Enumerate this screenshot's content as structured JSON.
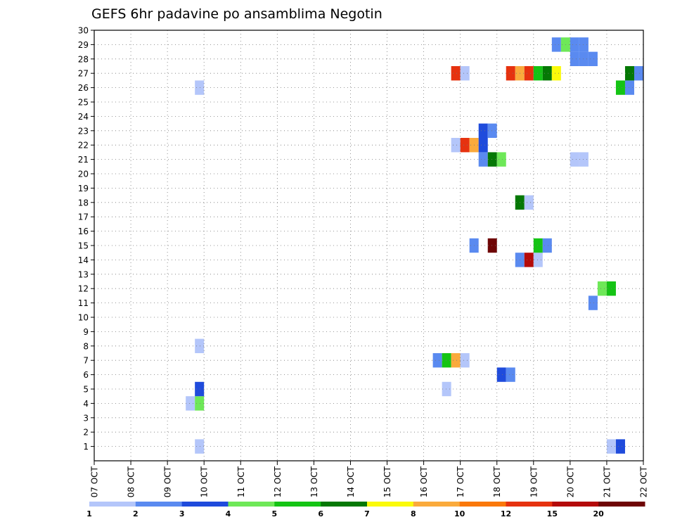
{
  "chart_data": {
    "type": "heatmap",
    "title": "GEFS 6hr padavine po ansamblima Negotin",
    "xlabel": "",
    "ylabel": "",
    "x_tick_labels": [
      "07 OCT",
      "08 OCT",
      "09 OCT",
      "10 OCT",
      "11 OCT",
      "12 OCT",
      "13 OCT",
      "14 OCT",
      "15 OCT",
      "16 OCT",
      "17 OCT",
      "18 OCT",
      "19 OCT",
      "20 OCT",
      "21 OCT",
      "22 OCT"
    ],
    "y_tick_labels": [
      "1",
      "2",
      "3",
      "4",
      "5",
      "6",
      "7",
      "8",
      "9",
      "10",
      "11",
      "12",
      "13",
      "14",
      "15",
      "16",
      "17",
      "18",
      "19",
      "20",
      "21",
      "22",
      "23",
      "24",
      "25",
      "26",
      "27",
      "28",
      "29",
      "30"
    ],
    "x_range_days": [
      0,
      15
    ],
    "y_range": [
      0,
      30
    ],
    "grid": true,
    "colors": [
      "#b4c6fa",
      "#5a8af0",
      "#1f4bdc",
      "#6ee858",
      "#14c414",
      "#057805",
      "#fafa0a",
      "#faaa3c",
      "#fa780a",
      "#e6320f",
      "#b40a0a",
      "#6e0505"
    ],
    "color_scale_labels": [
      "1",
      "2",
      "3",
      "4",
      "5",
      "6",
      "7",
      "8",
      "10",
      "12",
      "15",
      "20"
    ],
    "cells": [
      {
        "member": 1,
        "day": 2.875,
        "color": 0
      },
      {
        "member": 1,
        "day": 14.125,
        "color": 0
      },
      {
        "member": 1,
        "day": 14.375,
        "color": 2
      },
      {
        "member": 4,
        "day": 2.625,
        "color": 0
      },
      {
        "member": 4,
        "day": 2.875,
        "color": 3
      },
      {
        "member": 5,
        "day": 2.875,
        "color": 2
      },
      {
        "member": 5,
        "day": 9.625,
        "color": 0
      },
      {
        "member": 6,
        "day": 11.125,
        "color": 2
      },
      {
        "member": 6,
        "day": 11.375,
        "color": 1
      },
      {
        "member": 7,
        "day": 9.375,
        "color": 1
      },
      {
        "member": 7,
        "day": 9.625,
        "color": 4
      },
      {
        "member": 7,
        "day": 9.875,
        "color": 7
      },
      {
        "member": 7,
        "day": 10.125,
        "color": 0
      },
      {
        "member": 8,
        "day": 2.875,
        "color": 0
      },
      {
        "member": 11,
        "day": 13.625,
        "color": 1
      },
      {
        "member": 12,
        "day": 13.875,
        "color": 3
      },
      {
        "member": 12,
        "day": 14.125,
        "color": 4
      },
      {
        "member": 14,
        "day": 11.625,
        "color": 1
      },
      {
        "member": 14,
        "day": 11.875,
        "color": 10
      },
      {
        "member": 14,
        "day": 12.125,
        "color": 0
      },
      {
        "member": 15,
        "day": 10.375,
        "color": 1
      },
      {
        "member": 15,
        "day": 10.875,
        "color": 11
      },
      {
        "member": 15,
        "day": 12.125,
        "color": 4
      },
      {
        "member": 15,
        "day": 12.375,
        "color": 1
      },
      {
        "member": 18,
        "day": 11.625,
        "color": 5
      },
      {
        "member": 18,
        "day": 11.875,
        "color": 0
      },
      {
        "member": 21,
        "day": 10.625,
        "color": 1
      },
      {
        "member": 21,
        "day": 10.875,
        "color": 5
      },
      {
        "member": 21,
        "day": 11.125,
        "color": 3
      },
      {
        "member": 21,
        "day": 13.125,
        "color": 0
      },
      {
        "member": 21,
        "day": 13.375,
        "color": 0
      },
      {
        "member": 22,
        "day": 9.875,
        "color": 0
      },
      {
        "member": 22,
        "day": 10.125,
        "color": 9
      },
      {
        "member": 22,
        "day": 10.375,
        "color": 7
      },
      {
        "member": 22,
        "day": 10.625,
        "color": 2
      },
      {
        "member": 23,
        "day": 10.625,
        "color": 2
      },
      {
        "member": 23,
        "day": 10.875,
        "color": 1
      },
      {
        "member": 26,
        "day": 2.875,
        "color": 0
      },
      {
        "member": 26,
        "day": 14.375,
        "color": 4
      },
      {
        "member": 26,
        "day": 14.625,
        "color": 1
      },
      {
        "member": 27,
        "day": 9.875,
        "color": 9
      },
      {
        "member": 27,
        "day": 10.125,
        "color": 0
      },
      {
        "member": 27,
        "day": 11.375,
        "color": 9
      },
      {
        "member": 27,
        "day": 11.625,
        "color": 7
      },
      {
        "member": 27,
        "day": 11.875,
        "color": 9
      },
      {
        "member": 27,
        "day": 12.125,
        "color": 4
      },
      {
        "member": 27,
        "day": 12.375,
        "color": 5
      },
      {
        "member": 27,
        "day": 12.625,
        "color": 6
      },
      {
        "member": 27,
        "day": 14.625,
        "color": 5
      },
      {
        "member": 27,
        "day": 14.875,
        "color": 1
      },
      {
        "member": 28,
        "day": 13.125,
        "color": 1
      },
      {
        "member": 28,
        "day": 13.375,
        "color": 1
      },
      {
        "member": 28,
        "day": 13.625,
        "color": 1
      },
      {
        "member": 29,
        "day": 12.625,
        "color": 1
      },
      {
        "member": 29,
        "day": 12.875,
        "color": 3
      },
      {
        "member": 29,
        "day": 13.125,
        "color": 1
      },
      {
        "member": 29,
        "day": 13.375,
        "color": 1
      }
    ]
  }
}
